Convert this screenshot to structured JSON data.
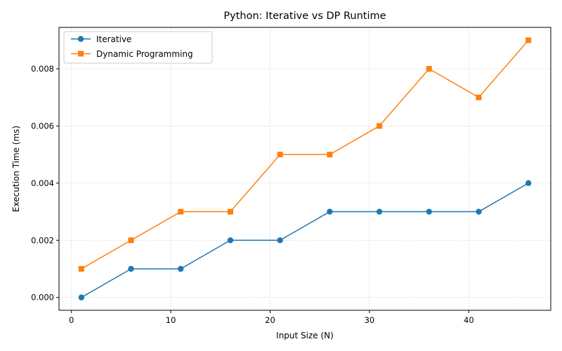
{
  "chart_data": {
    "type": "line",
    "title": "Python: Iterative vs DP Runtime",
    "xlabel": "Input Size (N)",
    "ylabel": "Execution Time (ms)",
    "x": [
      1,
      6,
      11,
      16,
      21,
      26,
      31,
      36,
      41,
      46
    ],
    "xlim": [
      -1.25,
      48.25
    ],
    "ylim": [
      -0.00045,
      0.00945
    ],
    "xticks": [
      0,
      10,
      20,
      30,
      40
    ],
    "xtick_labels": [
      "0",
      "10",
      "20",
      "30",
      "40"
    ],
    "yticks": [
      0,
      0.002,
      0.004,
      0.006,
      0.008
    ],
    "ytick_labels": [
      "0.000",
      "0.002",
      "0.004",
      "0.006",
      "0.008"
    ],
    "grid": true,
    "legend_position": "top-left",
    "series": [
      {
        "name": "Iterative",
        "color": "#1f77b4",
        "marker": "circle",
        "values": [
          0.0,
          0.001,
          0.001,
          0.002,
          0.002,
          0.003,
          0.003,
          0.003,
          0.003,
          0.004
        ]
      },
      {
        "name": "Dynamic Programming",
        "color": "#ff7f0e",
        "marker": "square",
        "values": [
          0.001,
          0.002,
          0.003,
          0.003,
          0.005,
          0.005,
          0.006,
          0.008,
          0.007,
          0.009
        ]
      }
    ]
  }
}
